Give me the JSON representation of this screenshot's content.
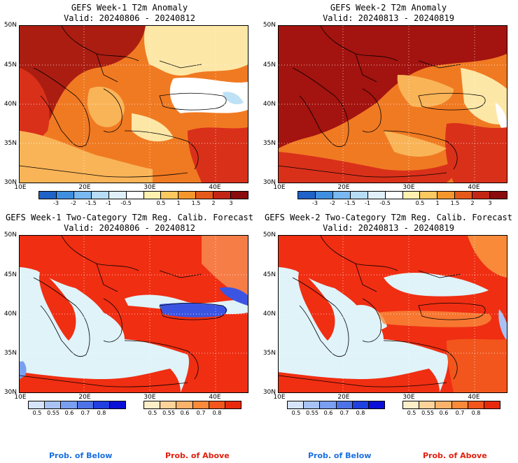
{
  "panels": [
    {
      "title": "GEFS Week-1 T2m Anomaly",
      "valid": "Valid: 20240806 - 20240812"
    },
    {
      "title": "GEFS Week-2 T2m Anomaly",
      "valid": "Valid: 20240813 - 20240819"
    },
    {
      "title": "GEFS Week-1 Two-Category T2m Reg. Calib. Forecast",
      "valid": "Valid: 20240806 - 20240812"
    },
    {
      "title": "GEFS Week-2 Two-Category T2m Reg. Calib. Forecast",
      "valid": "Valid: 20240813 - 20240819"
    }
  ],
  "lat_labels": [
    "50N",
    "45N",
    "40N",
    "35N",
    "30N"
  ],
  "lon_labels": [
    "10E",
    "20E",
    "30E",
    "40E"
  ],
  "anomaly_colorbar": {
    "ticks": [
      "-3",
      "-2",
      "-1.5",
      "-1",
      "-0.5",
      "0.5",
      "1",
      "1.5",
      "2",
      "3"
    ],
    "colors": [
      "#1f62c8",
      "#3f8fe0",
      "#79b8f0",
      "#b6dcf6",
      "#dff0fb",
      "#ffffff",
      "#fff0b0",
      "#fcc860",
      "#f5962c",
      "#e55a1a",
      "#c42616",
      "#8a0c0c"
    ]
  },
  "prob_below": {
    "ticks": [
      "0.5",
      "0.55",
      "0.6",
      "0.7",
      "0.8"
    ],
    "colors": [
      "#d6e4fb",
      "#a8c3f3",
      "#7b9ff0",
      "#4d73e6",
      "#2040e0",
      "#0a10d8"
    ]
  },
  "prob_above": {
    "ticks": [
      "0.5",
      "0.55",
      "0.6",
      "0.7",
      "0.8"
    ],
    "colors": [
      "#fdeec8",
      "#fdd39a",
      "#fbb26a",
      "#f98a3a",
      "#f2561c",
      "#e82a0c"
    ]
  },
  "labels": {
    "prob_below": "Prob. of Below",
    "prob_above": "Prob. of Above"
  },
  "colors": {
    "sea_light": "#dff3f9",
    "deep_red": "#a3130f",
    "red": "#d9301a",
    "orange": "#f07a22",
    "light_orange": "#f9b458",
    "pale_yellow": "#fde7a6",
    "white": "#ffffff",
    "light_blue": "#bfe1f6",
    "prob_red": "#f02e12",
    "prob_blue": "#3b55e2"
  }
}
